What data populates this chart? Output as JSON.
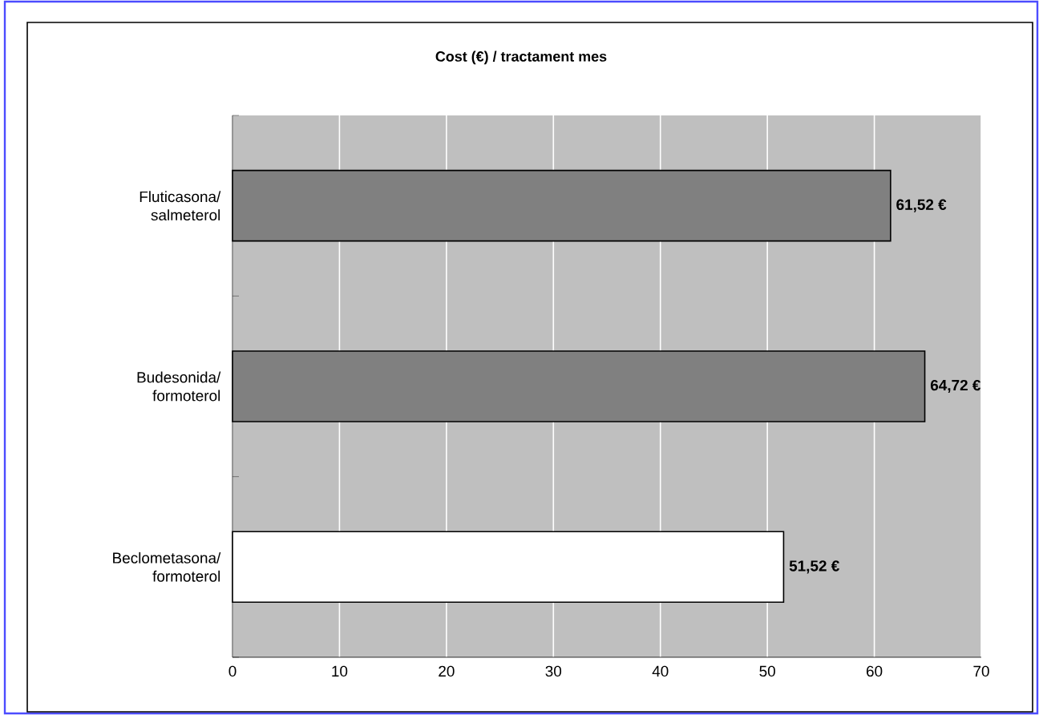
{
  "chart_data": {
    "type": "bar",
    "orientation": "horizontal",
    "title": "Cost (€) / tractament mes",
    "categories": [
      "Fluticasona/ salmeterol",
      "Budesonida/ formoterol",
      "Beclometasona/ formoterol"
    ],
    "values": [
      61.52,
      64.72,
      51.52
    ],
    "colors": [
      "#808080",
      "#808080",
      "#ffffff"
    ],
    "value_labels": [
      "61,52 €",
      "64,72 €",
      "51,52 €"
    ],
    "xlim": [
      0,
      70
    ],
    "xticks": [
      0,
      10,
      20,
      30,
      40,
      50,
      60,
      70
    ],
    "grid": "x"
  }
}
